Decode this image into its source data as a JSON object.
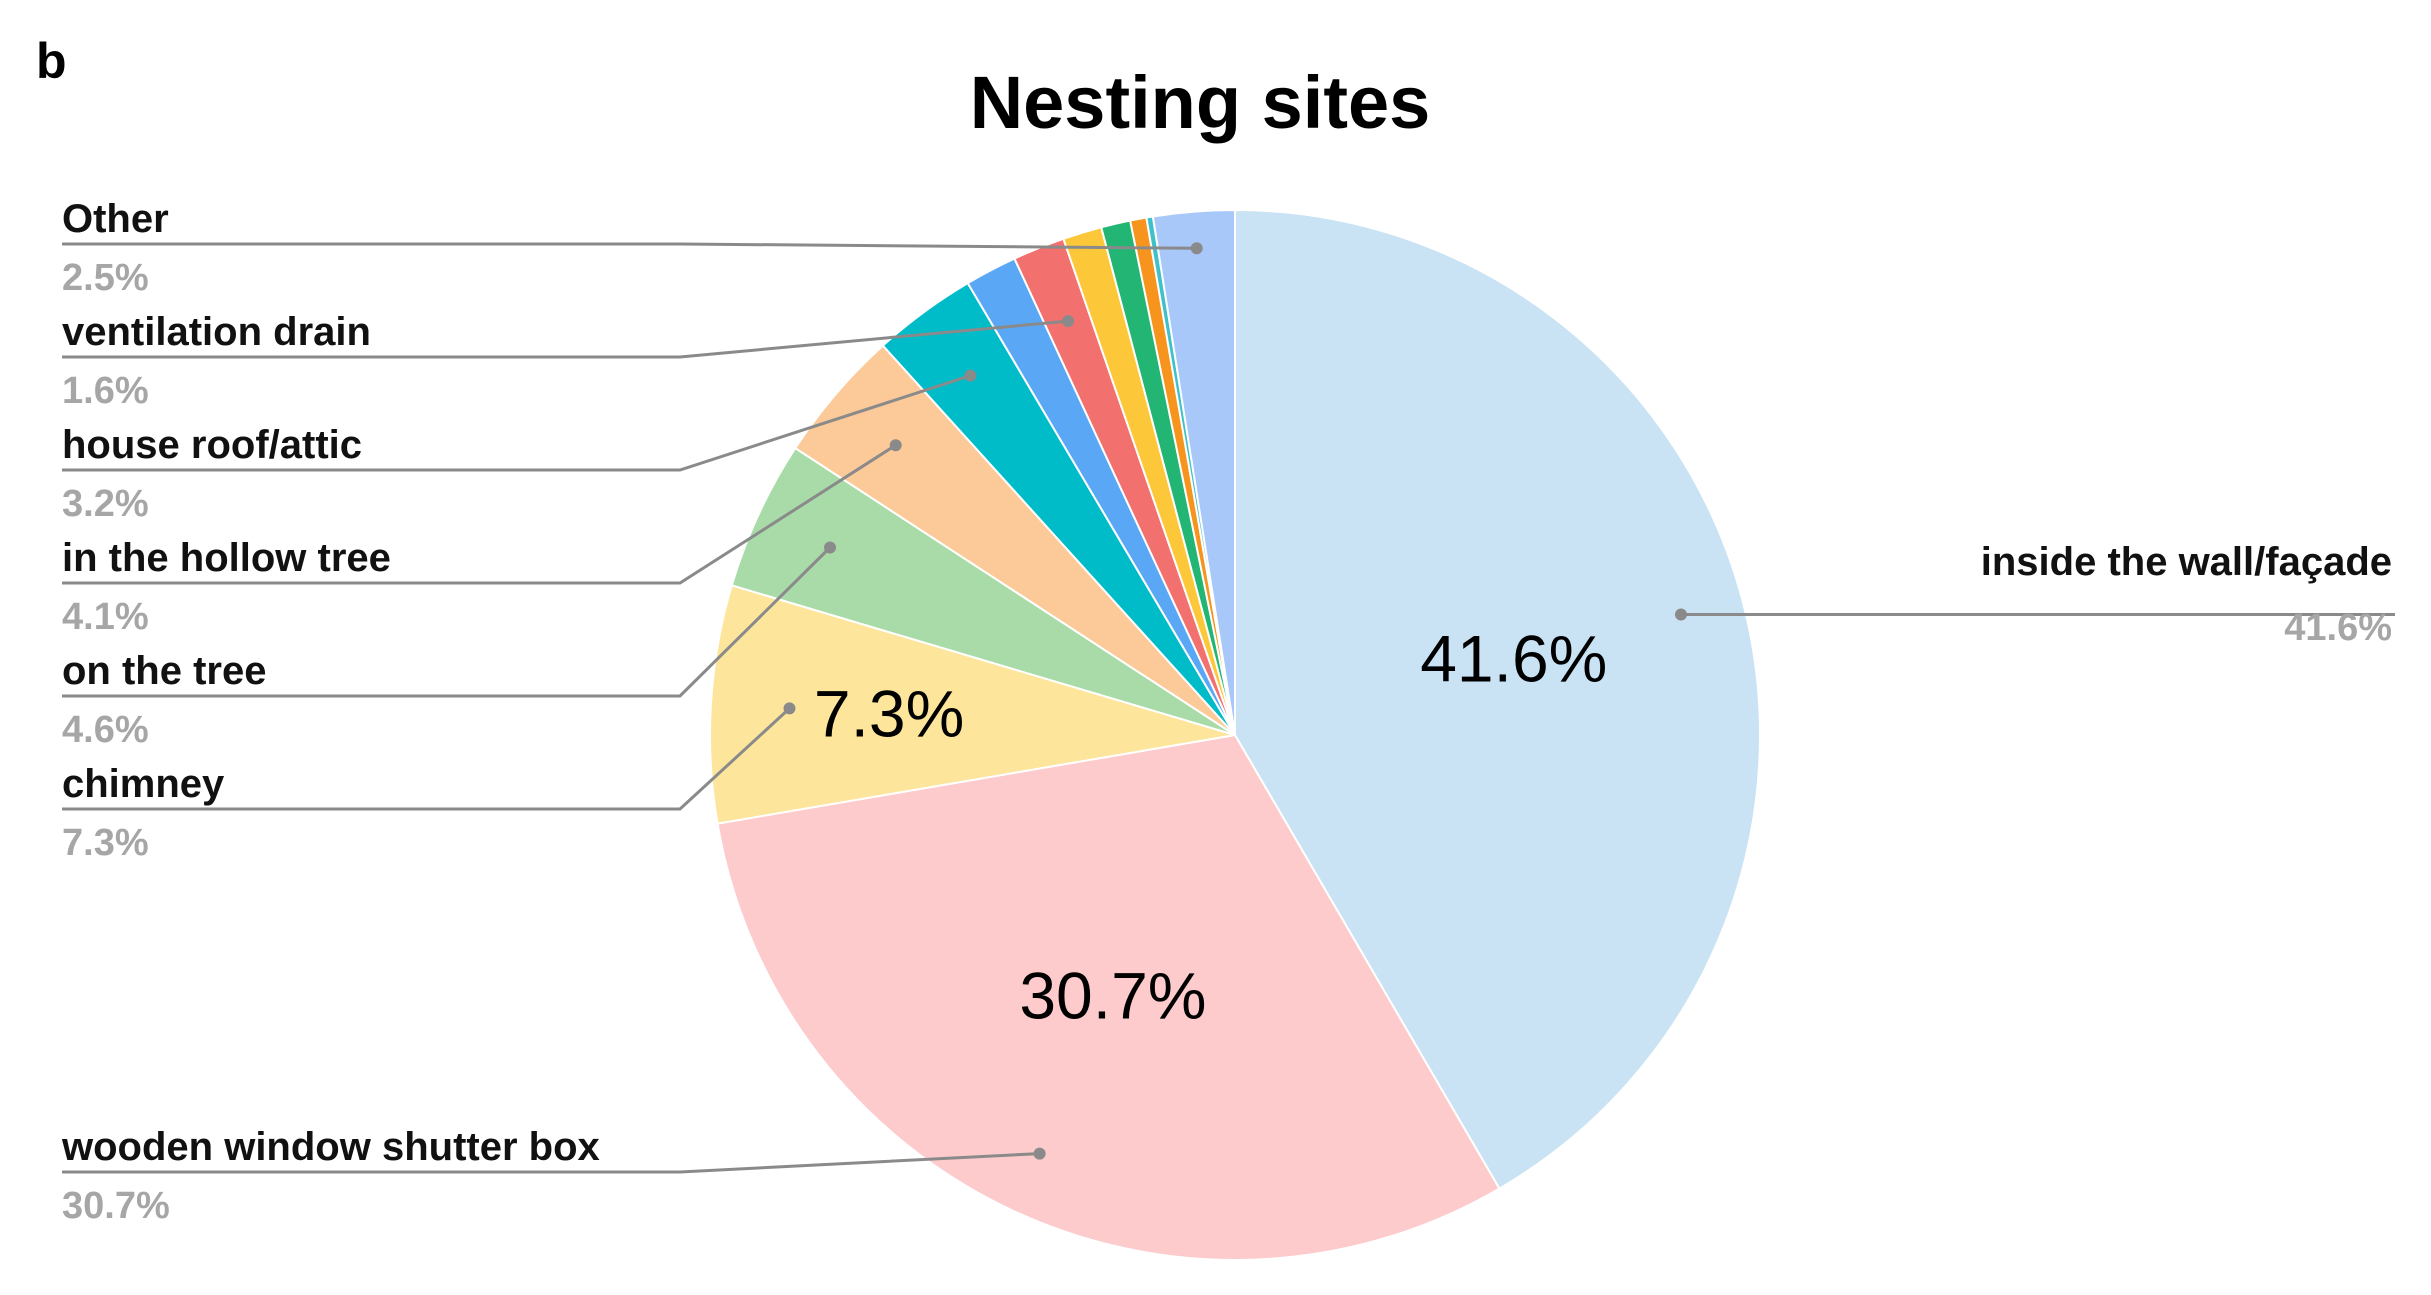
{
  "panel_label": "b",
  "chart_data": {
    "type": "pie",
    "title": "Nesting sites",
    "slices": [
      {
        "label": "inside the wall/façade",
        "value": 41.6,
        "display": "41.6%",
        "color": "#c9e2f4",
        "inner_label": "41.6%"
      },
      {
        "label": "wooden window shutter box",
        "value": 30.7,
        "display": "30.7%",
        "color": "#fdcbcc",
        "inner_label": "30.7%"
      },
      {
        "label": "chimney",
        "value": 7.3,
        "display": "7.3%",
        "color": "#fde59b",
        "inner_label": "7.3%"
      },
      {
        "label": "on the tree",
        "value": 4.6,
        "display": "4.6%",
        "color": "#a8dba8",
        "inner_label": ""
      },
      {
        "label": "in the hollow tree",
        "value": 4.1,
        "display": "4.1%",
        "color": "#fcc998",
        "inner_label": ""
      },
      {
        "label": "house roof/attic",
        "value": 3.2,
        "display": "3.2%",
        "color": "#00bcc9",
        "inner_label": ""
      },
      {
        "label": "",
        "value": 1.6,
        "display": "",
        "color": "#5aa7f5",
        "inner_label": ""
      },
      {
        "label": "ventilation drain",
        "value": 1.6,
        "display": "1.6%",
        "color": "#f2706e",
        "inner_label": ""
      },
      {
        "label": "",
        "value": 1.2,
        "display": "",
        "color": "#fcc839",
        "inner_label": ""
      },
      {
        "label": "",
        "value": 0.9,
        "display": "",
        "color": "#22b573",
        "inner_label": ""
      },
      {
        "label": "",
        "value": 0.5,
        "display": "",
        "color": "#f7941d",
        "inner_label": ""
      },
      {
        "label": "",
        "value": 0.2,
        "display": "",
        "color": "#3ec1c9",
        "inner_label": ""
      },
      {
        "label": "Other",
        "value": 2.5,
        "display": "2.5%",
        "color": "#a9c8fa",
        "inner_label": ""
      }
    ]
  }
}
